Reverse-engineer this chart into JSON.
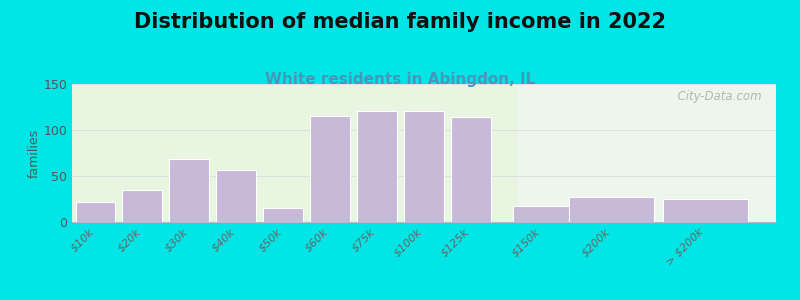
{
  "title": "Distribution of median family income in 2022",
  "subtitle": "White residents in Abingdon, IL",
  "categories": [
    "$10k",
    "$20k",
    "$30k",
    "$40k",
    "$50k",
    "$60k",
    "$75k",
    "$100k",
    "$125k",
    "$150k",
    "$200k",
    "> $200k"
  ],
  "values": [
    22,
    35,
    68,
    57,
    15,
    115,
    121,
    121,
    114,
    17,
    27,
    25
  ],
  "x_positions": [
    0,
    1,
    2,
    3,
    4,
    5,
    6,
    7,
    8,
    9.5,
    11.0,
    13.0
  ],
  "bar_widths": [
    0.85,
    0.85,
    0.85,
    0.85,
    0.85,
    0.85,
    0.85,
    0.85,
    0.85,
    1.2,
    1.8,
    1.8
  ],
  "bar_color": "#c9b8d8",
  "bar_edge_color": "#ffffff",
  "ylabel": "families",
  "ylim": [
    0,
    150
  ],
  "yticks": [
    0,
    50,
    100,
    150
  ],
  "background_outer": "#00e5e5",
  "background_inner_left": "#e8f5e0",
  "background_inner_right": "#eef5ec",
  "title_fontsize": 15,
  "subtitle_fontsize": 11,
  "subtitle_color": "#4499bb",
  "watermark": "  City-Data.com",
  "watermark_color": "#aaaaaa"
}
